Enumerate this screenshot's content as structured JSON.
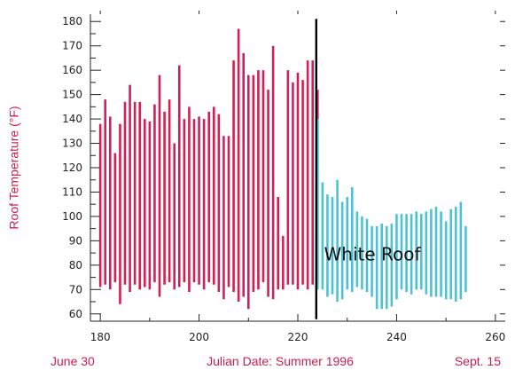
{
  "chart_data": {
    "type": "bar",
    "ylabel": "Roof Temperature (°F)",
    "xlabel": "Julian Date: Summer 1996",
    "x_start_label": "June 30",
    "x_end_label": "Sept. 15",
    "xlim": [
      178,
      262
    ],
    "ylim": [
      57,
      183
    ],
    "x_ticks": [
      180,
      200,
      220,
      240,
      260
    ],
    "y_ticks": [
      60,
      70,
      80,
      90,
      100,
      110,
      120,
      130,
      140,
      150,
      160,
      170,
      180
    ],
    "annotation": "White Roof",
    "divider_x": 224,
    "colors": {
      "before": "#d31f55",
      "after": "#4cc3d3",
      "divider": "#000000"
    },
    "series": [
      {
        "name": "",
        "x": [
          180,
          181,
          182,
          183,
          184,
          185,
          186,
          187,
          188,
          189,
          190,
          191,
          192,
          193,
          194,
          195,
          196,
          197,
          198,
          199,
          200,
          201,
          202,
          203,
          204,
          205,
          206,
          207,
          208,
          209,
          210,
          211,
          212,
          213,
          214,
          215,
          216,
          217,
          218,
          219,
          220,
          221,
          222,
          223,
          224
        ],
        "min": [
          71,
          72,
          70,
          73,
          64,
          72,
          69,
          72,
          70,
          71,
          70,
          73,
          67,
          72,
          73,
          70,
          71,
          73,
          69,
          73,
          72,
          70,
          73,
          72,
          69,
          66,
          71,
          69,
          65,
          67,
          62,
          69,
          70,
          73,
          67,
          66,
          70,
          70,
          72,
          72,
          70,
          72,
          70,
          72,
          73
        ],
        "max": [
          138,
          148,
          141,
          126,
          138,
          147,
          154,
          147,
          147,
          140,
          139,
          146,
          158,
          143,
          148,
          130,
          162,
          140,
          145,
          140,
          141,
          140,
          143,
          145,
          142,
          133,
          133,
          164,
          177,
          167,
          158,
          158,
          160,
          160,
          152,
          170,
          108,
          92,
          160,
          155,
          159,
          156,
          164,
          164,
          152
        ]
      },
      {
        "name": "",
        "x": [
          224,
          225,
          226,
          227,
          228,
          229,
          230,
          231,
          232,
          233,
          234,
          235,
          236,
          237,
          238,
          239,
          240,
          241,
          242,
          243,
          244,
          245,
          246,
          247,
          248,
          249,
          250,
          251,
          252,
          253,
          254
        ],
        "min": [
          70,
          70,
          67,
          68,
          65,
          66,
          70,
          69,
          71,
          70,
          69,
          67,
          62,
          62,
          62,
          63,
          66,
          70,
          69,
          68,
          70,
          70,
          68,
          67,
          67,
          67,
          66,
          66,
          65,
          66,
          69
        ],
        "max": [
          140,
          114,
          109,
          108,
          115,
          106,
          108,
          112,
          102,
          100,
          99,
          96,
          96,
          97,
          96,
          97,
          101,
          101,
          101,
          101,
          102,
          101,
          102,
          103,
          104,
          102,
          98,
          103,
          104,
          106,
          96
        ]
      }
    ]
  }
}
